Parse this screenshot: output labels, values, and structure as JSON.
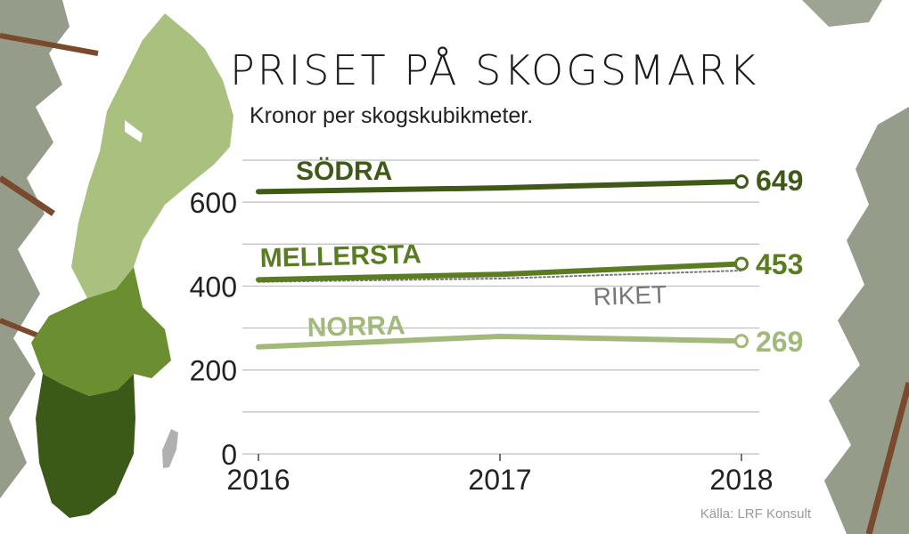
{
  "title": "PRISET PÅ SKOGSMARK",
  "subtitle": "Kronor per skogskubikmeter.",
  "source": "Källa: LRF Konsult",
  "colors": {
    "sodra": "#3f5a17",
    "mellersta": "#5b7d22",
    "norra": "#a2b97a",
    "riket": "#777777",
    "grid": "#bdbdbd",
    "map_light": "#a9c07f",
    "map_mid": "#6b8f30",
    "map_dark": "#3c5a17",
    "gotland": "#b0b0b0",
    "tree_foliage": "#3e4a2a"
  },
  "chart_data": {
    "type": "line",
    "x": [
      "2016",
      "2017",
      "2018"
    ],
    "ylim": [
      0,
      700
    ],
    "yticks": [
      0,
      200,
      400,
      600
    ],
    "grid": true,
    "series": [
      {
        "name": "SÖDRA",
        "key": "sodra",
        "values": [
          625,
          634,
          649
        ],
        "end_label": "649"
      },
      {
        "name": "MELLERSTA",
        "key": "mellersta",
        "values": [
          415,
          428,
          453
        ],
        "end_label": "453"
      },
      {
        "name": "NORRA",
        "key": "norra",
        "values": [
          255,
          280,
          269
        ],
        "end_label": "269"
      },
      {
        "name": "RIKET",
        "key": "riket",
        "values": [
          410,
          418,
          437
        ],
        "dotted": true
      }
    ]
  }
}
